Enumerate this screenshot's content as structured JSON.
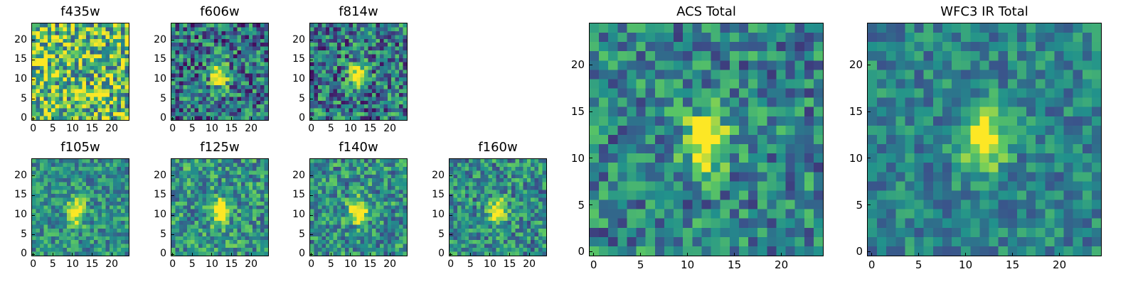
{
  "figure": {
    "colormap": "viridis",
    "colormap_stops": [
      "#440154",
      "#3b528b",
      "#21918c",
      "#5ec962",
      "#fde725"
    ]
  },
  "chart_data": [
    {
      "type": "heatmap",
      "title": "f435w",
      "grid_size": [
        25,
        25
      ],
      "xticks": [
        0,
        5,
        10,
        15,
        20
      ],
      "yticks": [
        0,
        5,
        10,
        15,
        20
      ],
      "xlim": [
        0,
        24
      ],
      "ylim": [
        0,
        24
      ],
      "source_peak": null,
      "noise_level": 0.55,
      "mean_level": 0.7
    },
    {
      "type": "heatmap",
      "title": "f606w",
      "grid_size": [
        25,
        25
      ],
      "xticks": [
        0,
        5,
        10,
        15,
        20
      ],
      "yticks": [
        0,
        5,
        10,
        15,
        20
      ],
      "xlim": [
        0,
        24
      ],
      "ylim": [
        0,
        24
      ],
      "source_peak": [
        12,
        11
      ],
      "noise_level": 0.45,
      "mean_level": 0.38
    },
    {
      "type": "heatmap",
      "title": "f814w",
      "grid_size": [
        25,
        25
      ],
      "xticks": [
        0,
        5,
        10,
        15,
        20
      ],
      "yticks": [
        0,
        5,
        10,
        15,
        20
      ],
      "xlim": [
        0,
        24
      ],
      "ylim": [
        0,
        24
      ],
      "source_peak": [
        12,
        11
      ],
      "noise_level": 0.45,
      "mean_level": 0.4
    },
    {
      "type": "heatmap",
      "title": "f105w",
      "grid_size": [
        25,
        25
      ],
      "xticks": [
        0,
        5,
        10,
        15,
        20
      ],
      "yticks": [
        0,
        5,
        10,
        15,
        20
      ],
      "xlim": [
        0,
        24
      ],
      "ylim": [
        0,
        24
      ],
      "source_peak": [
        11,
        11
      ],
      "noise_level": 0.3,
      "mean_level": 0.5
    },
    {
      "type": "heatmap",
      "title": "f125w",
      "grid_size": [
        25,
        25
      ],
      "xticks": [
        0,
        5,
        10,
        15,
        20
      ],
      "yticks": [
        0,
        5,
        10,
        15,
        20
      ],
      "xlim": [
        0,
        24
      ],
      "ylim": [
        0,
        24
      ],
      "source_peak": [
        12,
        11
      ],
      "noise_level": 0.35,
      "mean_level": 0.52
    },
    {
      "type": "heatmap",
      "title": "f140w",
      "grid_size": [
        25,
        25
      ],
      "xticks": [
        0,
        5,
        10,
        15,
        20
      ],
      "yticks": [
        0,
        5,
        10,
        15,
        20
      ],
      "xlim": [
        0,
        24
      ],
      "ylim": [
        0,
        24
      ],
      "source_peak": [
        12,
        11
      ],
      "noise_level": 0.35,
      "mean_level": 0.5
    },
    {
      "type": "heatmap",
      "title": "f160w",
      "grid_size": [
        25,
        25
      ],
      "xticks": [
        0,
        5,
        10,
        15,
        20
      ],
      "yticks": [
        0,
        5,
        10,
        15,
        20
      ],
      "xlim": [
        0,
        24
      ],
      "ylim": [
        0,
        24
      ],
      "source_peak": [
        12,
        11
      ],
      "noise_level": 0.35,
      "mean_level": 0.48
    },
    {
      "type": "heatmap",
      "title": "ACS Total",
      "grid_size": [
        25,
        25
      ],
      "xticks": [
        0,
        5,
        10,
        15,
        20
      ],
      "yticks": [
        0,
        5,
        10,
        15,
        20
      ],
      "xlim": [
        0,
        24
      ],
      "ylim": [
        0,
        24
      ],
      "source_peak": [
        12,
        12
      ],
      "noise_level": 0.35,
      "mean_level": 0.45
    },
    {
      "type": "heatmap",
      "title": "WFC3 IR Total",
      "grid_size": [
        25,
        25
      ],
      "xticks": [
        0,
        5,
        10,
        15,
        20
      ],
      "yticks": [
        0,
        5,
        10,
        15,
        20
      ],
      "xlim": [
        0,
        24
      ],
      "ylim": [
        0,
        24
      ],
      "source_peak": [
        12,
        12
      ],
      "noise_level": 0.25,
      "mean_level": 0.45
    }
  ]
}
